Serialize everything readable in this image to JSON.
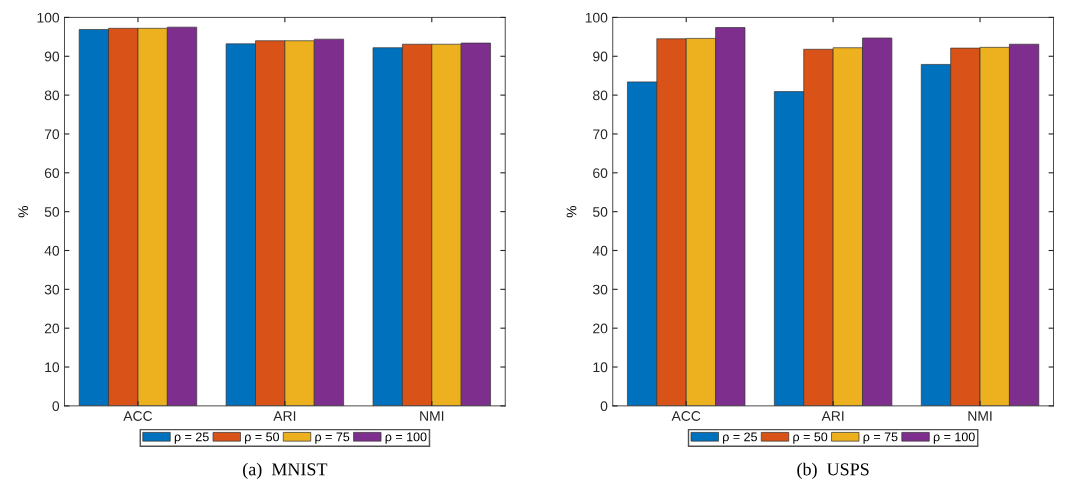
{
  "chart_data": [
    {
      "type": "bar",
      "title": "(a)  MNIST",
      "ylabel": "%",
      "categories": [
        "ACC",
        "ARI",
        "NMI"
      ],
      "series": [
        {
          "name": "ρ = 25",
          "color": "#0072bd",
          "values": [
            96.9,
            93.2,
            92.2
          ]
        },
        {
          "name": "ρ = 50",
          "color": "#d95319",
          "values": [
            97.2,
            94.0,
            93.1
          ]
        },
        {
          "name": "ρ = 75",
          "color": "#edb120",
          "values": [
            97.2,
            94.0,
            93.1
          ]
        },
        {
          "name": "ρ = 100",
          "color": "#7e2f8e",
          "values": [
            97.5,
            94.4,
            93.4
          ]
        }
      ],
      "ylim": [
        0,
        100
      ],
      "yticks": [
        0,
        10,
        20,
        30,
        40,
        50,
        60,
        70,
        80,
        90,
        100
      ],
      "legend": "bottom"
    },
    {
      "type": "bar",
      "title": "(b)  USPS",
      "ylabel": "%",
      "categories": [
        "ACC",
        "ARI",
        "NMI"
      ],
      "series": [
        {
          "name": "ρ = 25",
          "color": "#0072bd",
          "values": [
            83.4,
            80.9,
            87.9
          ]
        },
        {
          "name": "ρ = 50",
          "color": "#d95319",
          "values": [
            94.5,
            91.8,
            92.1
          ]
        },
        {
          "name": "ρ = 75",
          "color": "#edb120",
          "values": [
            94.6,
            92.2,
            92.3
          ]
        },
        {
          "name": "ρ = 100",
          "color": "#7e2f8e",
          "values": [
            97.4,
            94.7,
            93.1
          ]
        }
      ],
      "ylim": [
        0,
        100
      ],
      "yticks": [
        0,
        10,
        20,
        30,
        40,
        50,
        60,
        70,
        80,
        90,
        100
      ],
      "legend": "bottom"
    }
  ]
}
